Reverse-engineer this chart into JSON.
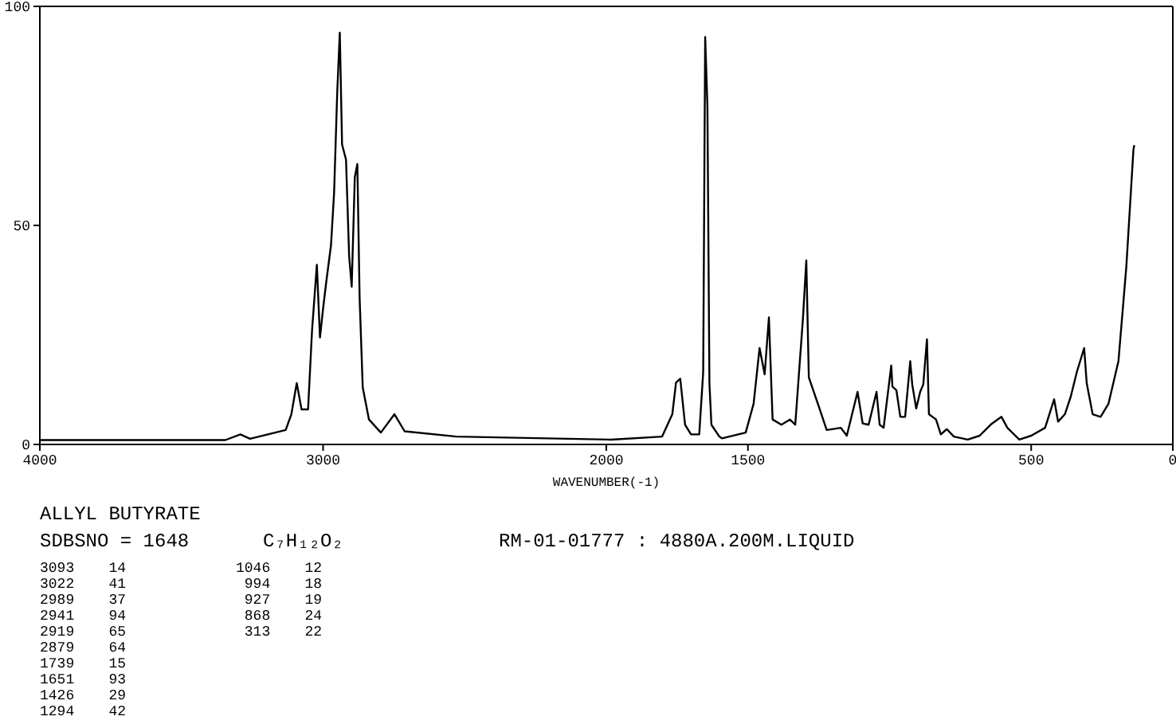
{
  "chart_data": {
    "type": "line",
    "title": "ALLYL BUTYRATE",
    "subtitle": "SDBSNO = 1648",
    "xlabel": "WAVENUMBER(-1)",
    "xlim": [
      4000,
      0
    ],
    "xticks": [
      4000,
      3000,
      2000,
      1500,
      500,
      0
    ],
    "ylim": [
      0,
      100
    ],
    "yticks": [
      0,
      50,
      100
    ],
    "marker": "none",
    "series": [
      {
        "color": "#000000",
        "x": [
          4000,
          3345,
          3292,
          3258,
          3132,
          3112,
          3093,
          3076,
          3053,
          3039,
          3022,
          3011,
          3000,
          2989,
          2972,
          2961,
          2950,
          2941,
          2933,
          2919,
          2908,
          2899,
          2888,
          2879,
          2871,
          2860,
          2838,
          2796,
          2748,
          2712,
          2529,
          1984,
          1803,
          1767,
          1754,
          1739,
          1722,
          1701,
          1672,
          1658,
          1651,
          1643,
          1636,
          1629,
          1601,
          1592,
          1508,
          1480,
          1459,
          1441,
          1426,
          1413,
          1382,
          1352,
          1333,
          1306,
          1294,
          1285,
          1250,
          1222,
          1172,
          1151,
          1113,
          1095,
          1074,
          1046,
          1035,
          1021,
          994,
          990,
          976,
          962,
          945,
          927,
          920,
          906,
          892,
          881,
          868,
          861,
          836,
          819,
          798,
          773,
          724,
          682,
          640,
          605,
          584,
          542,
          500,
          451,
          419,
          405,
          381,
          360,
          339,
          313,
          304,
          283,
          255,
          227,
          192,
          164,
          139,
          136
        ],
        "values": [
          1,
          1,
          2.3,
          1.3,
          3.3,
          6.9,
          14,
          8,
          8,
          26,
          41,
          24.4,
          31,
          37,
          45.5,
          57.6,
          80.5,
          94,
          68.5,
          65,
          43,
          36,
          61,
          64,
          33.4,
          13,
          5.7,
          2.7,
          6.9,
          3,
          1.8,
          1.1,
          1.8,
          6.9,
          14.1,
          15,
          4.5,
          2.3,
          2.3,
          16.5,
          93,
          77,
          14,
          4.5,
          1.8,
          1.4,
          2.7,
          9.3,
          22,
          16,
          29,
          5.7,
          4.5,
          5.7,
          4.5,
          28.6,
          42,
          15.3,
          8.7,
          3.3,
          3.8,
          2,
          12,
          4.8,
          4.5,
          12,
          4.5,
          3.8,
          18,
          13.2,
          12.4,
          6.3,
          6.3,
          19,
          13.7,
          8.2,
          12,
          13.7,
          24,
          6.9,
          5.7,
          2.3,
          3.5,
          1.8,
          1.1,
          2,
          4.7,
          6.3,
          3.8,
          1.1,
          2,
          3.8,
          10.3,
          5.2,
          6.9,
          11,
          16.5,
          22,
          14,
          6.9,
          6.3,
          9.3,
          19,
          40.7,
          67.3,
          68.3
        ]
      }
    ],
    "annotations": [
      "C₇H₁₂O₂",
      "RM-01-01777 : 4880A.200M.LIQUID",
      "3093    14",
      "3022    41",
      "2989    37",
      "2941    94",
      "2919    65",
      "2879    64",
      "1739    15",
      "1651    93",
      "1426    29",
      "1294    42",
      "1046    12",
      " 994    18",
      " 927    19",
      " 868    24",
      " 313    22"
    ]
  }
}
